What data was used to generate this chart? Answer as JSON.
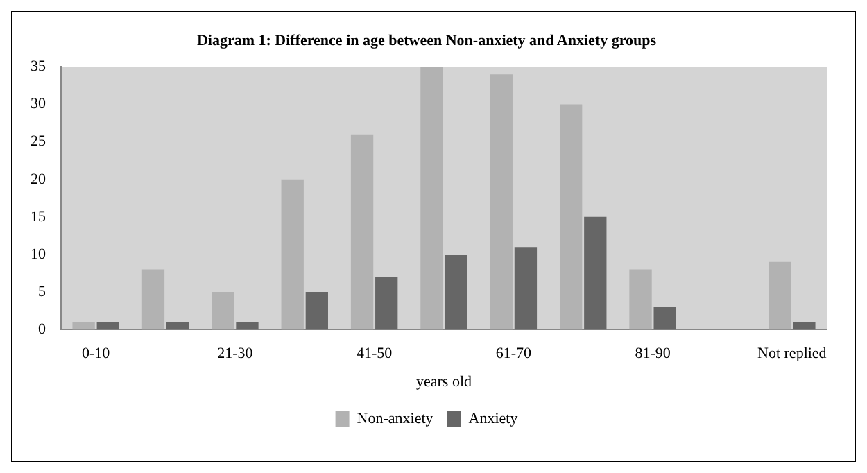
{
  "chart_data": {
    "type": "bar",
    "title": "Diagram 1: Difference in age between Non-anxiety and Anxiety groups",
    "xlabel": "years old",
    "categories": [
      "0-10",
      null,
      "21-30",
      null,
      "41-50",
      null,
      "61-70",
      null,
      "81-90",
      null,
      "Not replied"
    ],
    "series": [
      {
        "name": "Non-anxiety",
        "color": "#b2b2b2",
        "values": [
          1,
          8,
          5,
          20,
          26,
          35,
          34,
          30,
          8,
          0,
          9
        ]
      },
      {
        "name": "Anxiety",
        "color": "#666666",
        "values": [
          1,
          1,
          1,
          5,
          7,
          10,
          11,
          15,
          3,
          0,
          1
        ]
      }
    ],
    "ylim": [
      0,
      35
    ],
    "yticks": [
      0,
      5,
      10,
      15,
      20,
      25,
      30,
      35
    ],
    "grid": false,
    "legend": "bottom"
  }
}
